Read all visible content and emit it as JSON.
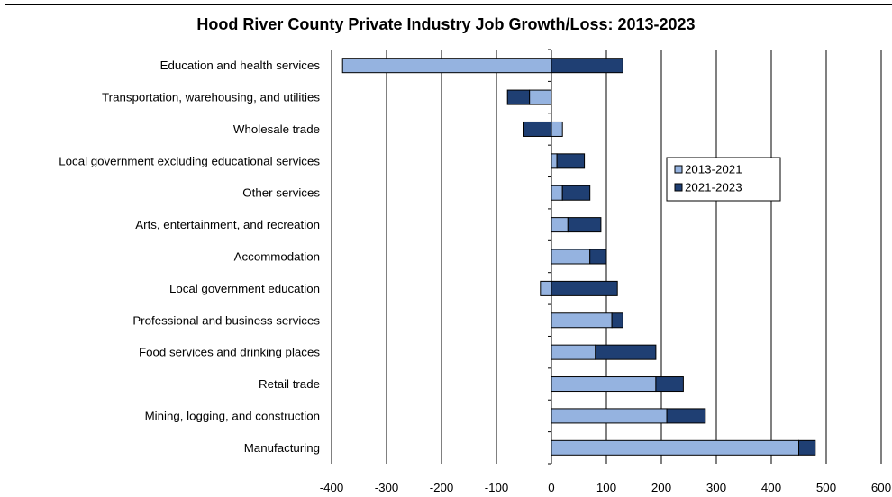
{
  "chart_data": {
    "type": "bar",
    "orientation": "horizontal",
    "stacked": true,
    "title": "Hood River County Private Industry Job Growth/Loss: 2013-2023",
    "xlim": [
      -400,
      600
    ],
    "xticks": [
      -400,
      -300,
      -200,
      -100,
      0,
      100,
      200,
      300,
      400,
      500,
      600
    ],
    "grid": true,
    "legend_position": "right",
    "categories": [
      "Education and health services",
      "Transportation, warehousing, and utilities",
      "Wholesale trade",
      "Local government excluding educational services",
      "Other services",
      "Arts, entertainment, and recreation",
      "Accommodation",
      "Local government education",
      "Professional and business services",
      "Food services and drinking places",
      "Retail trade",
      "Mining, logging, and construction",
      "Manufacturing"
    ],
    "series": [
      {
        "name": "2013-2021",
        "color": "#95b3e0",
        "values": [
          -380,
          -40,
          20,
          10,
          20,
          30,
          70,
          -20,
          110,
          80,
          190,
          210,
          450
        ]
      },
      {
        "name": "2021-2023",
        "color": "#1f3f73",
        "values": [
          130,
          -40,
          -50,
          50,
          50,
          60,
          30,
          120,
          20,
          110,
          50,
          70,
          30
        ]
      }
    ]
  }
}
